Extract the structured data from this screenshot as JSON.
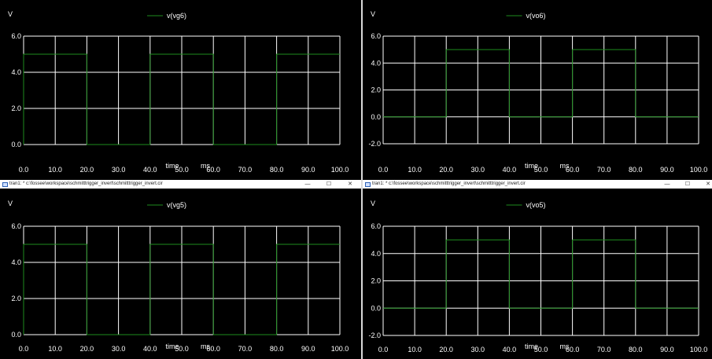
{
  "window_title": "tran1: * c:\\fossee\\workspace\\schmitttrigger_invert\\schmitttrigger_invert.cir",
  "window_controls": {
    "minimize": "—",
    "maximize": "☐",
    "close": "✕"
  },
  "colors": {
    "trace": "#1e8c1e",
    "grid": "#ffffff",
    "background": "#000000",
    "text": "#ffffff"
  },
  "chart_data": [
    {
      "type": "line",
      "ylabel": "V",
      "xlabel": "time",
      "xunit": "ms",
      "series": [
        {
          "name": "v(vg6)",
          "x": [
            0,
            0,
            20,
            20,
            40,
            40,
            60,
            60,
            80,
            80,
            100
          ],
          "y": [
            0,
            5,
            5,
            0,
            0,
            5,
            5,
            0,
            0,
            5,
            5
          ]
        }
      ],
      "xlim": [
        0,
        100
      ],
      "ylim": [
        0,
        6
      ],
      "xticks": [
        "0.0",
        "10.0",
        "20.0",
        "30.0",
        "40.0",
        "50.0",
        "60.0",
        "70.0",
        "80.0",
        "90.0",
        "100.0"
      ],
      "yticks": [
        "6.0",
        "4.0",
        "2.0",
        "0.0"
      ],
      "grid": true,
      "legend": "top-center"
    },
    {
      "type": "line",
      "ylabel": "V",
      "xlabel": "time",
      "xunit": "ms",
      "series": [
        {
          "name": "v(vo6)",
          "x": [
            0,
            20,
            20,
            40,
            40,
            60,
            60,
            80,
            80,
            100
          ],
          "y": [
            0,
            0,
            5,
            5,
            0,
            0,
            5,
            5,
            0,
            0
          ]
        }
      ],
      "xlim": [
        0,
        100
      ],
      "ylim": [
        -2,
        6
      ],
      "xticks": [
        "0.0",
        "10.0",
        "20.0",
        "30.0",
        "40.0",
        "50.0",
        "60.0",
        "70.0",
        "80.0",
        "90.0",
        "100.0"
      ],
      "yticks": [
        "6.0",
        "4.0",
        "2.0",
        "0.0",
        "-2.0"
      ],
      "grid": true,
      "legend": "top-center"
    },
    {
      "type": "line",
      "ylabel": "V",
      "xlabel": "time",
      "xunit": "ms",
      "series": [
        {
          "name": "v(vg5)",
          "x": [
            0,
            0,
            20,
            20,
            40,
            40,
            60,
            60,
            80,
            80,
            100
          ],
          "y": [
            0,
            5,
            5,
            0,
            0,
            5,
            5,
            0,
            0,
            5,
            5
          ]
        }
      ],
      "xlim": [
        0,
        100
      ],
      "ylim": [
        0,
        6
      ],
      "xticks": [
        "0.0",
        "10.0",
        "20.0",
        "30.0",
        "40.0",
        "50.0",
        "60.0",
        "70.0",
        "80.0",
        "90.0",
        "100.0"
      ],
      "yticks": [
        "6.0",
        "4.0",
        "2.0",
        "0.0"
      ],
      "grid": true,
      "legend": "top-center"
    },
    {
      "type": "line",
      "ylabel": "V",
      "xlabel": "time",
      "xunit": "ms",
      "series": [
        {
          "name": "v(vo5)",
          "x": [
            0,
            20,
            20,
            40,
            40,
            60,
            60,
            80,
            80,
            100
          ],
          "y": [
            0,
            0,
            5,
            5,
            0,
            0,
            5,
            5,
            0,
            0
          ]
        }
      ],
      "xlim": [
        0,
        100
      ],
      "ylim": [
        -2,
        6
      ],
      "xticks": [
        "0.0",
        "10.0",
        "20.0",
        "30.0",
        "40.0",
        "50.0",
        "60.0",
        "70.0",
        "80.0",
        "90.0",
        "100.0"
      ],
      "yticks": [
        "6.0",
        "4.0",
        "2.0",
        "0.0",
        "-2.0"
      ],
      "grid": true,
      "legend": "top-center"
    }
  ]
}
